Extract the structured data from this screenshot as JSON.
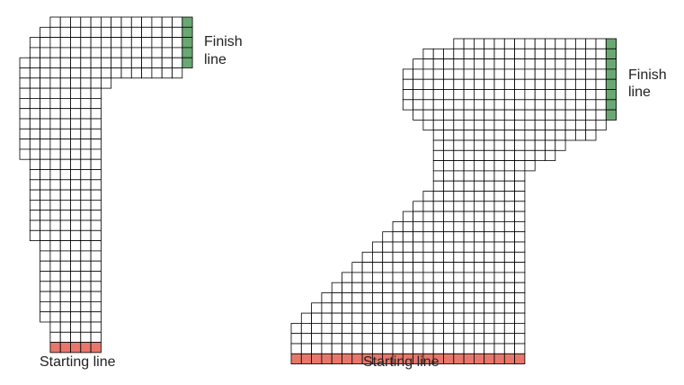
{
  "colors": {
    "cell_fill": "#ffffff",
    "cell_stroke": "#000000",
    "start_fill": "#e8776b",
    "finish_fill": "#6aa873"
  },
  "tracks": [
    {
      "start_label": "Starting line",
      "finish_label_line1": "Finish",
      "finish_label_line2": "line",
      "rows": [
        [
          3,
          16
        ],
        [
          2,
          16
        ],
        [
          1,
          16
        ],
        [
          1,
          16
        ],
        [
          0,
          16
        ],
        [
          0,
          16
        ],
        [
          0,
          9
        ],
        [
          0,
          8
        ],
        [
          0,
          8
        ],
        [
          0,
          8
        ],
        [
          0,
          8
        ],
        [
          0,
          8
        ],
        [
          0,
          8
        ],
        [
          0,
          8
        ],
        [
          1,
          8
        ],
        [
          1,
          8
        ],
        [
          1,
          8
        ],
        [
          1,
          8
        ],
        [
          1,
          8
        ],
        [
          1,
          8
        ],
        [
          1,
          8
        ],
        [
          1,
          8
        ],
        [
          2,
          8
        ],
        [
          2,
          8
        ],
        [
          2,
          8
        ],
        [
          2,
          8
        ],
        [
          2,
          8
        ],
        [
          2,
          8
        ],
        [
          2,
          8
        ],
        [
          2,
          8
        ],
        [
          3,
          8
        ],
        [
          3,
          8
        ]
      ],
      "start_cells": [
        3,
        8
      ],
      "finish_rows": [
        0,
        5
      ]
    },
    {
      "start_label": "Starting line",
      "finish_label_line1": "Finish",
      "finish_label_line2": "line",
      "rows": [
        [
          16,
          31
        ],
        [
          13,
          31
        ],
        [
          12,
          31
        ],
        [
          11,
          31
        ],
        [
          11,
          31
        ],
        [
          11,
          31
        ],
        [
          11,
          31
        ],
        [
          12,
          31
        ],
        [
          13,
          31
        ],
        [
          14,
          30
        ],
        [
          14,
          27
        ],
        [
          14,
          26
        ],
        [
          14,
          24
        ],
        [
          14,
          23
        ],
        [
          14,
          23
        ],
        [
          13,
          23
        ],
        [
          12,
          23
        ],
        [
          11,
          23
        ],
        [
          10,
          23
        ],
        [
          9,
          23
        ],
        [
          8,
          23
        ],
        [
          7,
          23
        ],
        [
          6,
          23
        ],
        [
          5,
          23
        ],
        [
          4,
          23
        ],
        [
          3,
          23
        ],
        [
          2,
          23
        ],
        [
          1,
          23
        ],
        [
          0,
          23
        ],
        [
          0,
          23
        ],
        [
          0,
          23
        ]
      ],
      "start_cells": [
        0,
        23
      ],
      "finish_rows": [
        0,
        8
      ]
    }
  ]
}
